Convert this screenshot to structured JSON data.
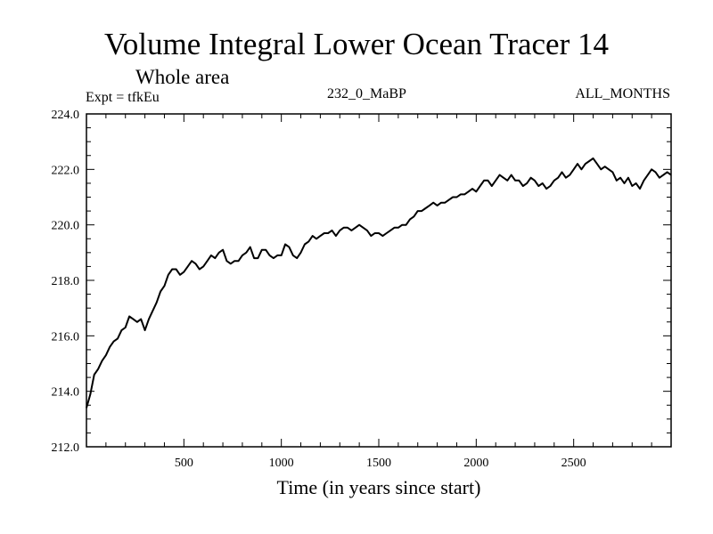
{
  "chart_data": {
    "type": "line",
    "title": "Volume Integral Lower Ocean Tracer 14",
    "subtitle": "Whole area",
    "experiment": "Expt = tfkEu",
    "period": "232_0_MaBP",
    "months": "ALL_MONTHS",
    "xlabel": "Time (in years since start)",
    "ylabel": "",
    "xlim": [
      0,
      3000
    ],
    "ylim": [
      212.0,
      224.0
    ],
    "xticks": [
      500,
      1000,
      1500,
      2000,
      2500
    ],
    "yticks": [
      "212.0",
      "214.0",
      "216.0",
      "218.0",
      "220.0",
      "222.0",
      "224.0"
    ],
    "grid": false,
    "series": [
      {
        "x": [
          0,
          20,
          40,
          60,
          80,
          100,
          120,
          140,
          160,
          180,
          200,
          220,
          240,
          260,
          280,
          300,
          320,
          340,
          360,
          380,
          400,
          420,
          440,
          460,
          480,
          500,
          520,
          540,
          560,
          580,
          600,
          620,
          640,
          660,
          680,
          700,
          720,
          740,
          760,
          780,
          800,
          820,
          840,
          860,
          880,
          900,
          920,
          940,
          960,
          980,
          1000,
          1020,
          1040,
          1060,
          1080,
          1100,
          1120,
          1140,
          1160,
          1180,
          1200,
          1220,
          1240,
          1260,
          1280,
          1300,
          1320,
          1340,
          1360,
          1380,
          1400,
          1420,
          1440,
          1460,
          1480,
          1500,
          1520,
          1540,
          1560,
          1580,
          1600,
          1620,
          1640,
          1660,
          1680,
          1700,
          1720,
          1740,
          1760,
          1780,
          1800,
          1820,
          1840,
          1860,
          1880,
          1900,
          1920,
          1940,
          1960,
          1980,
          2000,
          2020,
          2040,
          2060,
          2080,
          2100,
          2120,
          2140,
          2160,
          2180,
          2200,
          2220,
          2240,
          2260,
          2280,
          2300,
          2320,
          2340,
          2360,
          2380,
          2400,
          2420,
          2440,
          2460,
          2480,
          2500,
          2520,
          2540,
          2560,
          2580,
          2600,
          2620,
          2640,
          2660,
          2680,
          2700,
          2720,
          2740,
          2760,
          2780,
          2800,
          2820,
          2840,
          2860,
          2880,
          2900,
          2920,
          2940,
          2960,
          2980,
          3000
        ],
        "y": [
          213.4,
          213.9,
          214.6,
          214.8,
          215.1,
          215.3,
          215.6,
          215.8,
          215.9,
          216.2,
          216.3,
          216.7,
          216.6,
          216.5,
          216.6,
          216.2,
          216.6,
          216.9,
          217.2,
          217.6,
          217.8,
          218.2,
          218.4,
          218.4,
          218.2,
          218.3,
          218.5,
          218.7,
          218.6,
          218.4,
          218.5,
          218.7,
          218.9,
          218.8,
          219.0,
          219.1,
          218.7,
          218.6,
          218.7,
          218.7,
          218.9,
          219.0,
          219.2,
          218.8,
          218.8,
          219.1,
          219.1,
          218.9,
          218.8,
          218.9,
          218.9,
          219.3,
          219.2,
          218.9,
          218.8,
          219.0,
          219.3,
          219.4,
          219.6,
          219.5,
          219.6,
          219.7,
          219.7,
          219.8,
          219.6,
          219.8,
          219.9,
          219.9,
          219.8,
          219.9,
          220.0,
          219.9,
          219.8,
          219.6,
          219.7,
          219.7,
          219.6,
          219.7,
          219.8,
          219.9,
          219.9,
          220.0,
          220.0,
          220.2,
          220.3,
          220.5,
          220.5,
          220.6,
          220.7,
          220.8,
          220.7,
          220.8,
          220.8,
          220.9,
          221.0,
          221.0,
          221.1,
          221.1,
          221.2,
          221.3,
          221.2,
          221.4,
          221.6,
          221.6,
          221.4,
          221.6,
          221.8,
          221.7,
          221.6,
          221.8,
          221.6,
          221.6,
          221.4,
          221.5,
          221.7,
          221.6,
          221.4,
          221.5,
          221.3,
          221.4,
          221.6,
          221.7,
          221.9,
          221.7,
          221.8,
          222.0,
          222.2,
          222.0,
          222.2,
          222.3,
          222.4,
          222.2,
          222.0,
          222.1,
          222.0,
          221.9,
          221.6,
          221.7,
          221.5,
          221.7,
          221.4,
          221.5,
          221.3,
          221.6,
          221.8,
          222.0,
          221.9,
          221.7,
          221.8,
          221.9,
          221.8
        ]
      }
    ]
  }
}
